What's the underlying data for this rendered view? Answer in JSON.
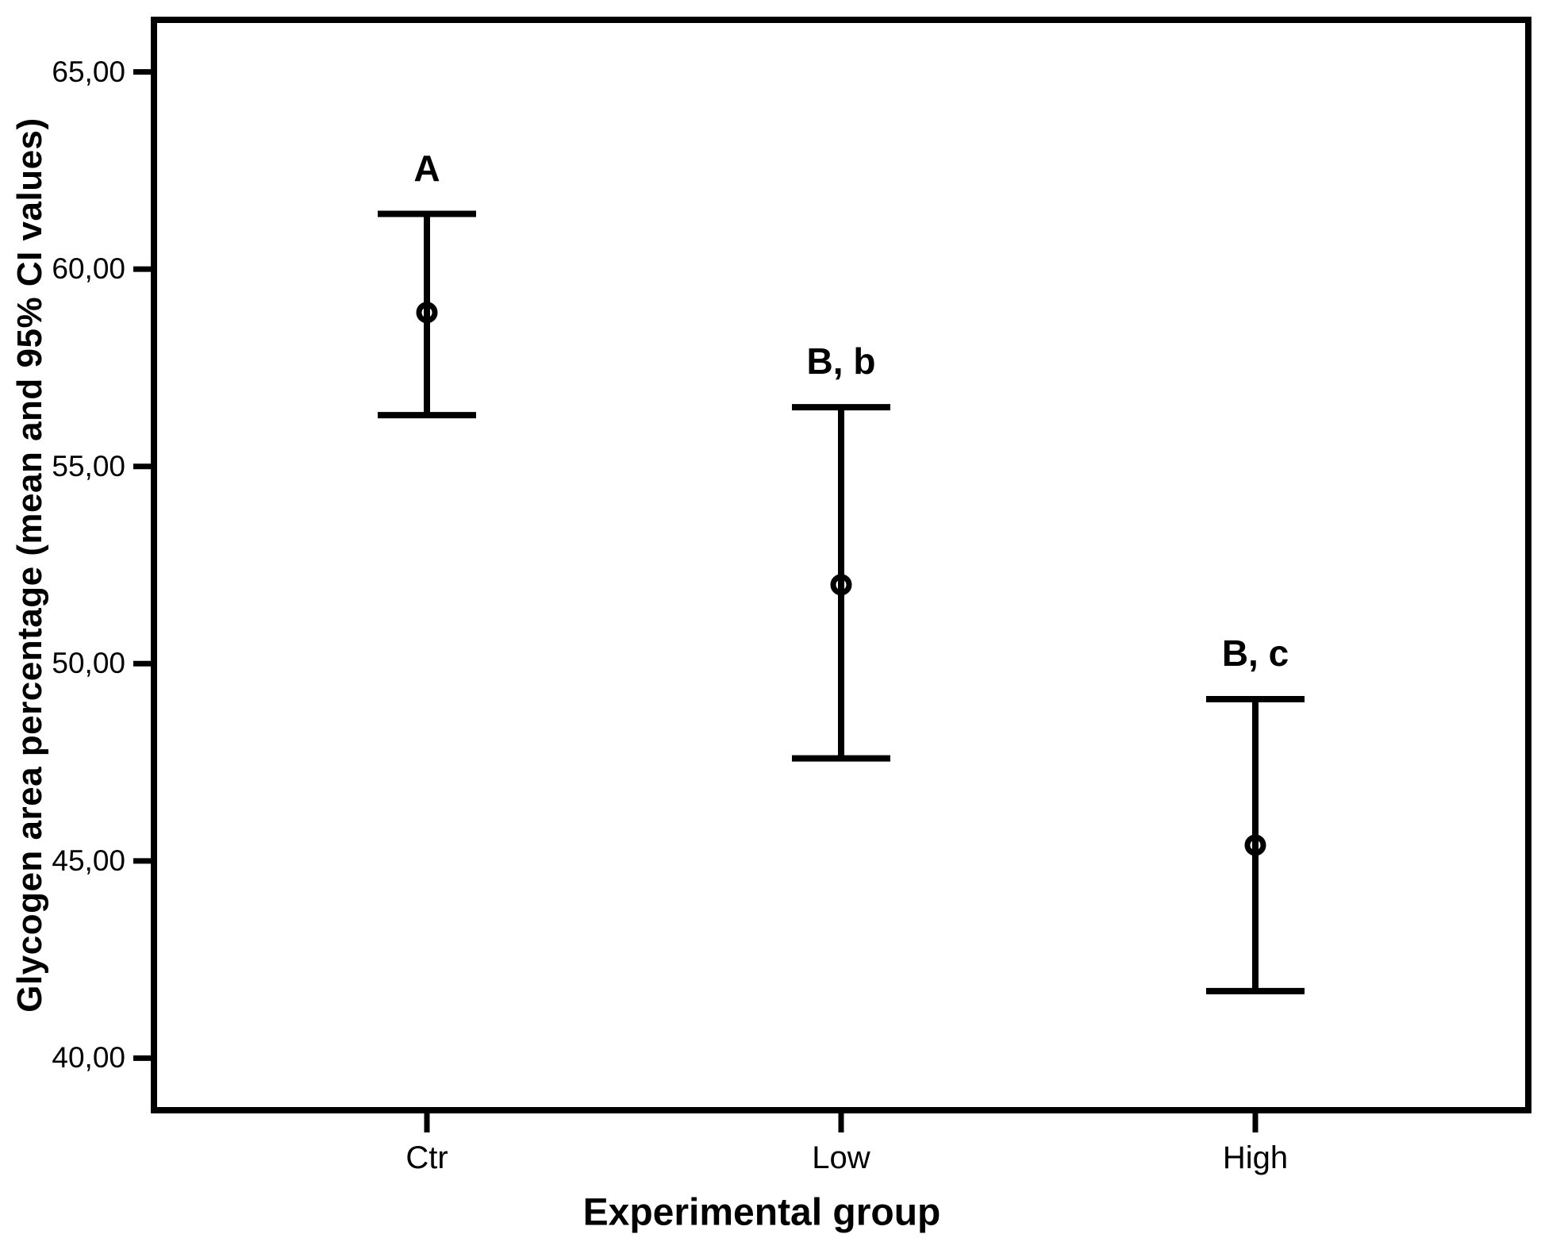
{
  "chart_data": {
    "type": "errorbar",
    "title": "",
    "xlabel": "Experimental group",
    "ylabel": "Glycogen area percentage (mean and 95% CI values)",
    "categories": [
      "Ctr",
      "Low",
      "High"
    ],
    "series": [
      {
        "name": "Glycogen area percentage (mean and 95% CI)",
        "means": [
          58.9,
          52.0,
          45.4
        ],
        "ci_low": [
          56.3,
          47.6,
          41.7
        ],
        "ci_high": [
          61.4,
          56.5,
          49.1
        ]
      }
    ],
    "annotations": [
      "A",
      "B, b",
      "B, c"
    ],
    "y_ticks": [
      {
        "value": 65,
        "label": "65,00"
      },
      {
        "value": 60,
        "label": "60,00"
      },
      {
        "value": 55,
        "label": "55,00"
      },
      {
        "value": 50,
        "label": "50,00"
      },
      {
        "value": 45,
        "label": "45,00"
      },
      {
        "value": 40,
        "label": "40,00"
      }
    ],
    "ylim": [
      38.6,
      66.4
    ],
    "x_positions": [
      0.2,
      0.5,
      0.8
    ],
    "marker": "open-circle",
    "legend": "none",
    "grid": "off",
    "colors": {
      "line": "#000000",
      "background": "#ffffff"
    }
  }
}
